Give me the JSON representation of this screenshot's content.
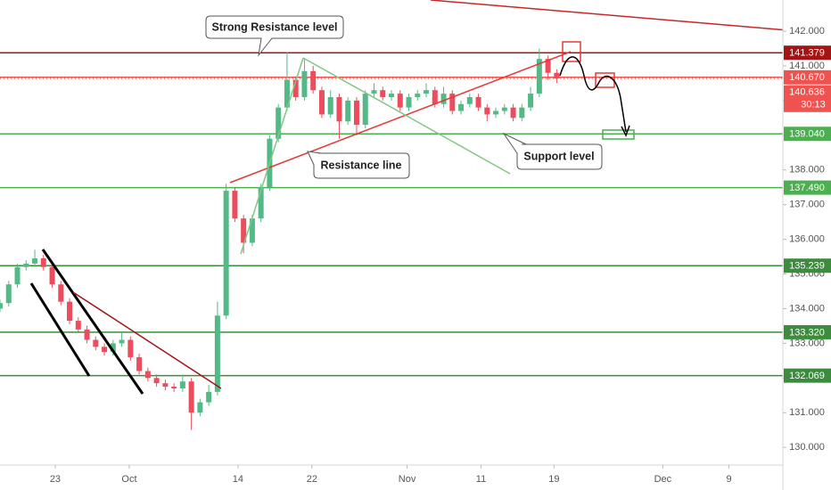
{
  "chart_data": {
    "type": "candlestick",
    "x": [
      0,
      1,
      2,
      3,
      4,
      5,
      6,
      7,
      8,
      9,
      10,
      11,
      12,
      13,
      14,
      15,
      16,
      17,
      18,
      19,
      20,
      21,
      22,
      23,
      24,
      25,
      26,
      27,
      28,
      29,
      30,
      31,
      32,
      33,
      34,
      35,
      36,
      37,
      38,
      39,
      40,
      41,
      42,
      43,
      44,
      45,
      46,
      47,
      48,
      49,
      50,
      51,
      52,
      53,
      54,
      55,
      56,
      57,
      58,
      59,
      60,
      61,
      62,
      63,
      64
    ],
    "open": [
      134.0,
      134.16,
      134.7,
      135.2,
      135.3,
      135.45,
      135.2,
      134.7,
      134.2,
      133.65,
      133.4,
      133.1,
      132.9,
      132.75,
      133.0,
      133.1,
      132.6,
      132.2,
      132.0,
      131.85,
      131.75,
      131.7,
      131.9,
      131.0,
      131.3,
      131.6,
      133.8,
      137.4,
      136.6,
      135.9,
      136.6,
      137.5,
      138.9,
      139.8,
      140.6,
      140.1,
      140.85,
      140.3,
      139.6,
      140.1,
      139.4,
      140.0,
      139.3,
      140.2,
      140.3,
      140.1,
      140.2,
      139.8,
      140.1,
      140.2,
      140.3,
      139.9,
      140.2,
      139.7,
      139.9,
      140.1,
      139.8,
      139.6,
      139.7,
      139.8,
      139.5,
      139.8,
      140.2,
      141.2,
      140.8
    ],
    "high": [
      134.26,
      134.8,
      135.3,
      135.4,
      135.7,
      135.55,
      135.3,
      134.8,
      134.3,
      133.75,
      133.5,
      133.2,
      133.0,
      133.1,
      133.3,
      133.2,
      132.7,
      132.3,
      132.1,
      131.95,
      131.85,
      132.1,
      132.0,
      131.4,
      131.8,
      134.2,
      137.6,
      137.5,
      136.7,
      136.7,
      137.6,
      139.0,
      139.9,
      141.4,
      140.7,
      141.2,
      141.0,
      140.4,
      140.3,
      140.2,
      140.1,
      140.1,
      140.3,
      140.5,
      140.4,
      140.3,
      140.3,
      140.2,
      140.3,
      140.5,
      140.4,
      140.4,
      140.3,
      140.0,
      140.2,
      140.2,
      139.9,
      139.8,
      139.9,
      139.9,
      139.9,
      140.4,
      141.5,
      141.3,
      140.9
    ],
    "low": [
      133.9,
      134.06,
      134.6,
      135.1,
      135.2,
      135.1,
      134.6,
      134.1,
      133.55,
      133.3,
      133.0,
      132.8,
      132.65,
      132.65,
      132.9,
      132.5,
      132.1,
      131.9,
      131.75,
      131.65,
      131.6,
      131.6,
      130.5,
      130.9,
      131.2,
      131.5,
      133.7,
      136.5,
      135.6,
      135.8,
      136.5,
      137.4,
      138.8,
      139.7,
      140.0,
      140.0,
      140.2,
      139.5,
      139.5,
      138.9,
      139.3,
      139.0,
      139.2,
      140.1,
      140.0,
      140.0,
      139.7,
      139.7,
      140.0,
      140.1,
      139.8,
      139.8,
      139.6,
      139.6,
      139.8,
      139.7,
      139.4,
      139.5,
      139.6,
      139.4,
      139.4,
      139.7,
      140.1,
      140.6,
      140.5
    ],
    "close": [
      134.16,
      134.7,
      135.2,
      135.3,
      135.45,
      135.2,
      134.7,
      134.2,
      133.65,
      133.4,
      133.1,
      132.9,
      132.75,
      133.0,
      133.1,
      132.6,
      132.2,
      132.0,
      131.85,
      131.75,
      131.7,
      131.9,
      131.0,
      131.3,
      131.6,
      133.8,
      137.4,
      136.6,
      135.9,
      136.6,
      137.5,
      138.9,
      139.8,
      140.6,
      140.1,
      140.85,
      140.3,
      139.6,
      140.1,
      139.4,
      140.0,
      139.3,
      140.2,
      140.3,
      140.1,
      140.2,
      139.8,
      140.1,
      140.2,
      140.3,
      139.9,
      140.2,
      139.7,
      139.9,
      140.1,
      139.8,
      139.6,
      139.7,
      139.8,
      139.5,
      139.8,
      140.2,
      141.2,
      140.8,
      140.636
    ],
    "up_color": "#53b987",
    "down_color": "#eb4d5c",
    "xlim": [
      0,
      90
    ],
    "xticks": [
      {
        "value": 6.35,
        "label": "23"
      },
      {
        "value": 14.86,
        "label": "Oct"
      },
      {
        "value": 27.36,
        "label": "14"
      },
      {
        "value": 35.86,
        "label": "22"
      },
      {
        "value": 46.8,
        "label": "Nov"
      },
      {
        "value": 55.3,
        "label": "11"
      },
      {
        "value": 63.7,
        "label": "19"
      },
      {
        "value": 76.2,
        "label": "Dec"
      },
      {
        "value": 83.8,
        "label": "9"
      }
    ],
    "ylim": [
      129.49,
      142.9
    ],
    "yticks": [
      {
        "value": 130,
        "label": "130.000"
      },
      {
        "value": 131,
        "label": "131.000"
      },
      {
        "value": 132,
        "label": "132.000"
      },
      {
        "value": 133,
        "label": "133.000"
      },
      {
        "value": 134,
        "label": "134.000"
      },
      {
        "value": 135,
        "label": "135.000"
      },
      {
        "value": 136,
        "label": "136.000"
      },
      {
        "value": 137,
        "label": "137.000"
      },
      {
        "value": 138,
        "label": "138.000"
      },
      {
        "value": 139,
        "label": "139.000"
      },
      {
        "value": 140,
        "label": "140.000"
      },
      {
        "value": 141,
        "label": "141.000"
      },
      {
        "value": 142,
        "label": "142.000"
      }
    ],
    "grid": false,
    "levels": [
      {
        "value": 141.379,
        "label": "141.379",
        "color": "#a31515"
      },
      {
        "value": 140.67,
        "label": "140.670",
        "color": "#ef5350"
      },
      {
        "value": 139.04,
        "label": "139.040",
        "color": "#4caf50"
      },
      {
        "value": 137.49,
        "label": "137.490",
        "color": "#4caf50"
      },
      {
        "value": 135.239,
        "label": "135.239",
        "color": "#3d8b3d"
      },
      {
        "value": 133.32,
        "label": "133.320",
        "color": "#3d8b3d"
      },
      {
        "value": 132.069,
        "label": "132.069",
        "color": "#3d8b3d"
      }
    ],
    "last_price": {
      "value": 140.636,
      "label": "140.636",
      "countdown": "30:13",
      "color": "#ef5350"
    },
    "annotations": [
      "Strong Resistance level",
      "Resistance line",
      "Support level"
    ]
  }
}
